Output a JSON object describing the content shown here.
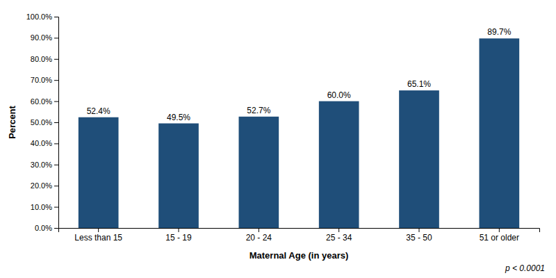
{
  "chart_data": {
    "type": "bar",
    "categories": [
      "Less than 15",
      "15 - 19",
      "20 - 24",
      "25 - 34",
      "35 - 50",
      "51 or older"
    ],
    "values": [
      52.4,
      49.5,
      52.7,
      60.0,
      65.1,
      89.7
    ],
    "value_labels": [
      "52.4%",
      "49.5%",
      "52.7%",
      "60.0%",
      "65.1%",
      "89.7%"
    ],
    "data_labels": true,
    "color": "#1F4E79",
    "xlabel": "Maternal Age (in years)",
    "ylabel": "Percent",
    "ylim": [
      0,
      100
    ],
    "yticks": [
      {
        "value": 0,
        "label": "0.0%"
      },
      {
        "value": 10,
        "label": "10.0%"
      },
      {
        "value": 20,
        "label": "20.0%"
      },
      {
        "value": 30,
        "label": "30.0%"
      },
      {
        "value": 40,
        "label": "40.0%"
      },
      {
        "value": 50,
        "label": "50.0%"
      },
      {
        "value": 60,
        "label": "60.0%"
      },
      {
        "value": 70,
        "label": "70.0%"
      },
      {
        "value": 80,
        "label": "80.0%"
      },
      {
        "value": 90,
        "label": "90.0%"
      },
      {
        "value": 100,
        "label": "100.0%"
      }
    ],
    "grid": false,
    "annotation": "p < 0.0001"
  }
}
